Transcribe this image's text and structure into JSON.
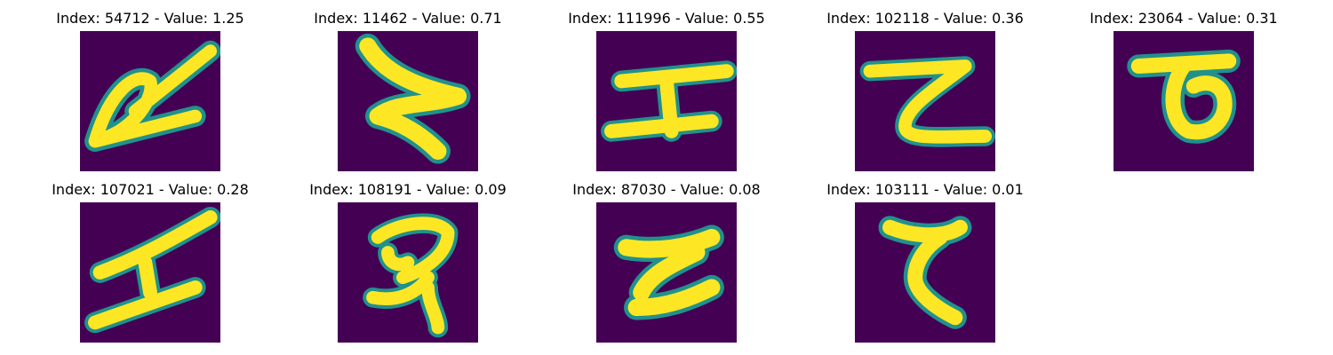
{
  "colors": {
    "background": "#440154",
    "foreground": "#fde725",
    "edge": "#21918c"
  },
  "tiles": [
    {
      "title": "Index: 54712 - Value: 1.25",
      "glyph": "slanted-a-loop-glyph"
    },
    {
      "title": "Index: 11462 - Value: 0.71",
      "glyph": "z-shape-glyph"
    },
    {
      "title": "Index: 111996 - Value: 0.55",
      "glyph": "i-beam-glyph"
    },
    {
      "title": "Index: 102118 - Value: 0.36",
      "glyph": "zeta-glyph"
    },
    {
      "title": "Index: 23064 - Value: 0.31",
      "glyph": "ring-under-bar-glyph"
    },
    {
      "title": "Index: 107021 - Value: 0.28",
      "glyph": "slanted-i-glyph"
    },
    {
      "title": "Index: 108191 - Value: 0.09",
      "glyph": "curl-glyph"
    },
    {
      "title": "Index: 87030 - Value: 0.08",
      "glyph": "z-bar-glyph"
    },
    {
      "title": "Index: 103111 - Value: 0.01",
      "glyph": "hook-glyph"
    }
  ]
}
